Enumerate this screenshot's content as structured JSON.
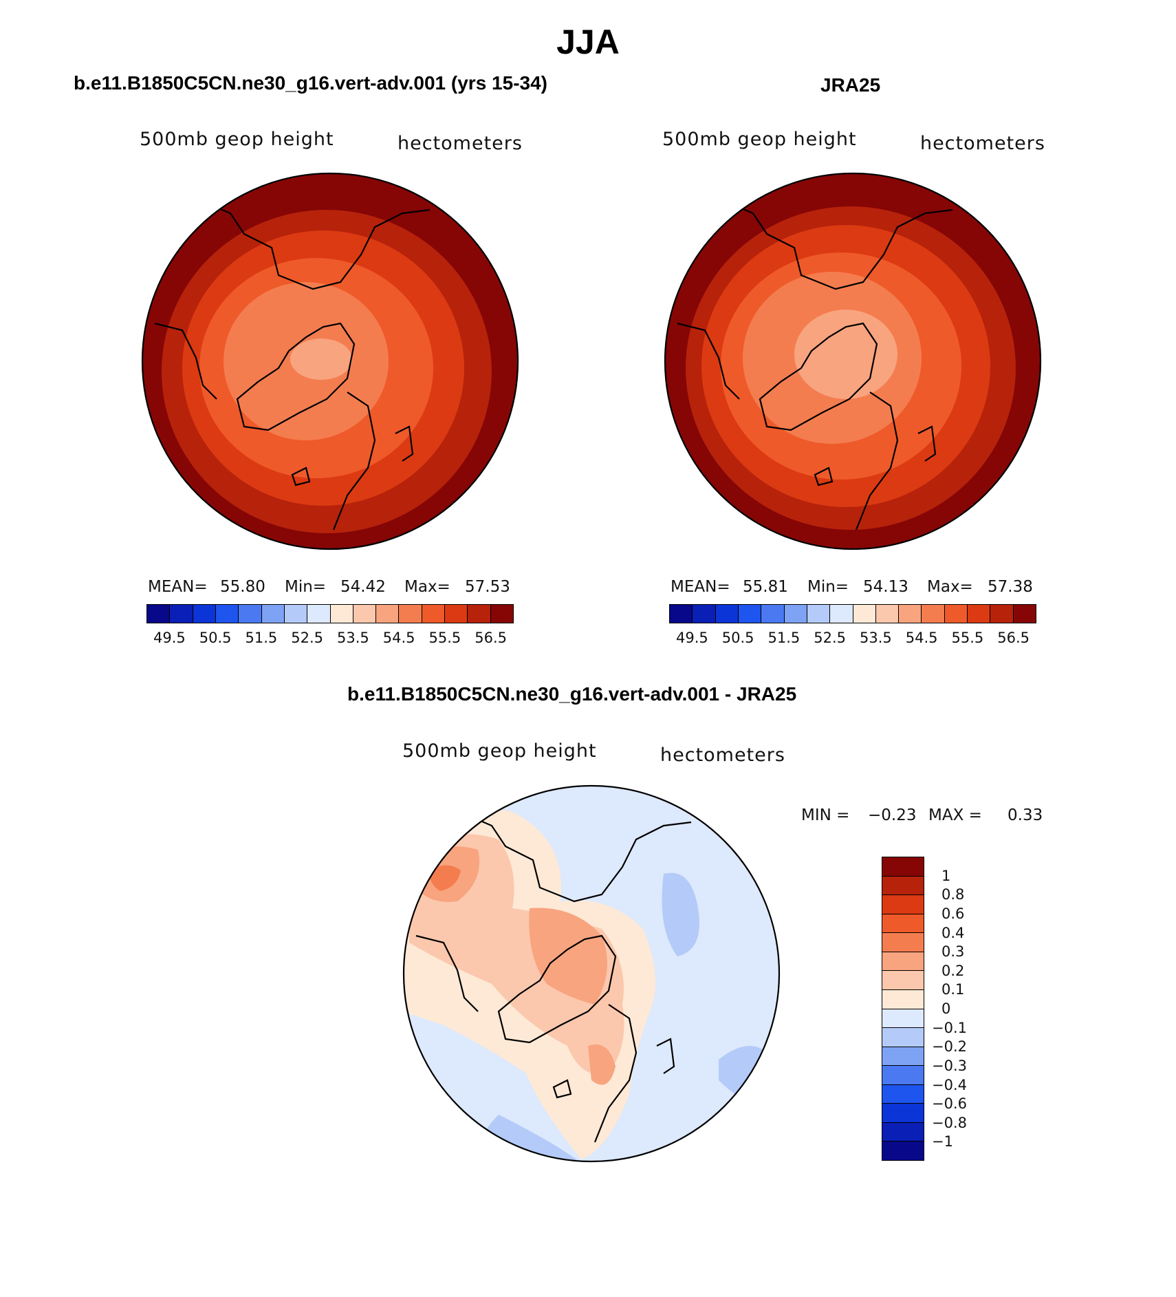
{
  "title": "JJA",
  "panels": {
    "model": {
      "title": "b.e11.B1850C5CN.ne30_g16.vert-adv.001 (yrs 15-34)",
      "variable": "500mb geop height",
      "units": "hectometers",
      "mean_label": "MEAN=",
      "mean": "55.80",
      "min_label": "Min=",
      "min": "54.42",
      "max_label": "Max=",
      "max": "57.53"
    },
    "obs": {
      "title": "JRA25",
      "variable": "500mb geop height",
      "units": "hectometers",
      "mean_label": "MEAN=",
      "mean": "55.81",
      "min_label": "Min=",
      "min": "54.13",
      "max_label": "Max=",
      "max": "57.38"
    },
    "diff": {
      "title": "b.e11.B1850C5CN.ne30_g16.vert-adv.001 - JRA25",
      "variable": "500mb geop height",
      "units": "hectometers",
      "min_label": "MIN =",
      "min": "−0.23",
      "max_label": "MAX =",
      "max": "0.33"
    }
  },
  "colorbar_abs": {
    "colors": [
      "#08088a",
      "#0a1fb5",
      "#0b35d6",
      "#1e55ee",
      "#4a79f2",
      "#7ea3f5",
      "#b4cbf9",
      "#dde9fc",
      "#fde9d6",
      "#fbc8ad",
      "#f8a47f",
      "#f47d4f",
      "#ef5a2a",
      "#dc3a12",
      "#b7220b",
      "#860606"
    ],
    "ticks": [
      "49.5",
      "50.5",
      "51.5",
      "52.5",
      "53.5",
      "54.5",
      "55.5",
      "56.5"
    ]
  },
  "colorbar_diff": {
    "colors": [
      "#860606",
      "#b7220b",
      "#dc3a12",
      "#ef5a2a",
      "#f47d4f",
      "#f8a47f",
      "#fbc8ad",
      "#fde9d6",
      "#dde9fc",
      "#b4cbf9",
      "#7ea3f5",
      "#4a79f2",
      "#1e55ee",
      "#0b35d6",
      "#0a1fb5",
      "#08088a"
    ],
    "ticks": [
      "1",
      "0.8",
      "0.6",
      "0.4",
      "0.3",
      "0.2",
      "0.1",
      "0",
      "−0.1",
      "−0.2",
      "−0.3",
      "−0.4",
      "−0.6",
      "−0.8",
      "−1"
    ]
  },
  "colors": {
    "abs_levels": [
      "#860606",
      "#b7220b",
      "#dc3a12",
      "#ef5a2a",
      "#f47d4f",
      "#f8a47f"
    ],
    "diff_neg1": "#dde9fc",
    "diff_neg2": "#b4cbf9",
    "diff_pos1": "#fde9d6",
    "diff_pos2": "#fbc8ad",
    "diff_pos3": "#f8a47f",
    "diff_pos4": "#f47d4f"
  }
}
